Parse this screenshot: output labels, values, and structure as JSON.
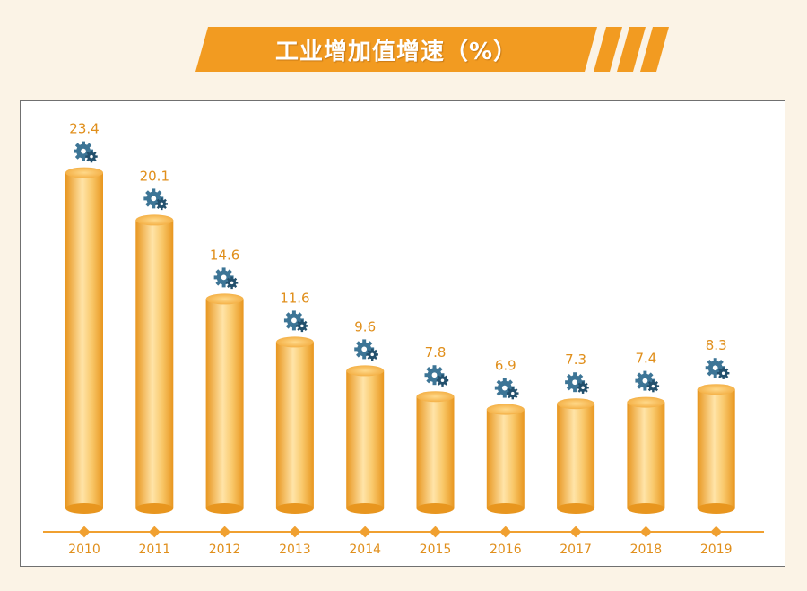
{
  "chart_data": {
    "type": "bar",
    "title": "工业增加值增速（%）",
    "categories": [
      "2010",
      "2011",
      "2012",
      "2013",
      "2014",
      "2015",
      "2016",
      "2017",
      "2018",
      "2019"
    ],
    "values": [
      23.4,
      20.1,
      14.6,
      11.6,
      9.6,
      7.8,
      6.9,
      7.3,
      7.4,
      8.3
    ],
    "value_labels": [
      "23.4",
      "20.1",
      "14.6",
      "11.6",
      "9.6",
      "7.8",
      "6.9",
      "7.3",
      "7.4",
      "8.3"
    ],
    "xlabel": "",
    "ylabel": "",
    "ylim": [
      0,
      25
    ],
    "grid": false,
    "legend": "none",
    "marker_icon": "gear-icon"
  },
  "colors": {
    "background": "#fbf3e6",
    "banner": "#f29b21",
    "bar_dark": "#e8961f",
    "bar_light": "#ffe4a8",
    "bar_top": "#f7b548",
    "label": "#e08f1c",
    "axis": "#f0a030",
    "gear": "#3d7596",
    "gear_dark": "#23506d"
  }
}
